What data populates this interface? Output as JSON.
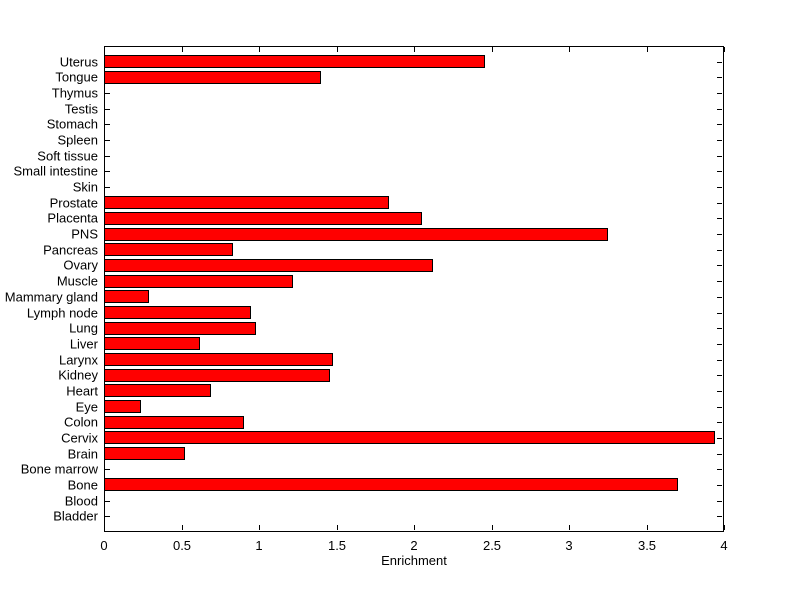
{
  "figure": {
    "background": "#ffffff",
    "axis_color": "#000000",
    "text_color": "#000000"
  },
  "chart_data": {
    "type": "bar",
    "orientation": "horizontal",
    "title": "",
    "xlabel": "Enrichment",
    "ylabel": "",
    "xlim": [
      0,
      4
    ],
    "grid": false,
    "legend": null,
    "bar_color": "#ff0000",
    "bar_edge_color": "#000000",
    "x_ticks": [
      {
        "value": 0,
        "label": "0"
      },
      {
        "value": 0.5,
        "label": "0.5"
      },
      {
        "value": 1,
        "label": "1"
      },
      {
        "value": 1.5,
        "label": "1.5"
      },
      {
        "value": 2,
        "label": "2"
      },
      {
        "value": 2.5,
        "label": "2.5"
      },
      {
        "value": 3,
        "label": "3"
      },
      {
        "value": 3.5,
        "label": "3.5"
      },
      {
        "value": 4,
        "label": "4"
      }
    ],
    "categories_top_to_bottom": [
      "Uterus",
      "Tongue",
      "Thymus",
      "Testis",
      "Stomach",
      "Spleen",
      "Soft tissue",
      "Small intestine",
      "Skin",
      "Prostate",
      "Placenta",
      "PNS",
      "Pancreas",
      "Ovary",
      "Muscle",
      "Mammary gland",
      "Lymph node",
      "Lung",
      "Liver",
      "Larynx",
      "Kidney",
      "Heart",
      "Eye",
      "Colon",
      "Cervix",
      "Brain",
      "Bone marrow",
      "Bone",
      "Blood",
      "Bladder"
    ],
    "values_top_to_bottom": [
      2.46,
      1.4,
      0,
      0,
      0,
      0,
      0,
      0,
      0,
      1.84,
      2.05,
      3.25,
      0.83,
      2.12,
      1.22,
      0.29,
      0.95,
      0.98,
      0.62,
      1.48,
      1.46,
      0.69,
      0.24,
      0.9,
      3.94,
      0.52,
      0,
      3.7,
      0,
      0
    ]
  }
}
